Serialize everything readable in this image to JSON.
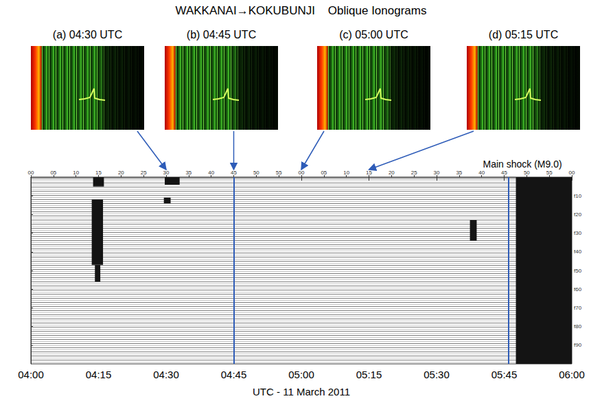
{
  "title": "WAKKANAI→KOKUBUNJI    Oblique Ionograms",
  "ionograms": [
    {
      "label": "(a) 04:30 UTC",
      "time": 30
    },
    {
      "label": "(b) 04:45 UTC",
      "time": 45
    },
    {
      "label": "(c) 05:00 UTC",
      "time": 60
    },
    {
      "label": "(d) 05:15 UTC",
      "time": 75
    }
  ],
  "chart_data": {
    "type": "spectrogram",
    "x_label": "UTC - 11 March 2011",
    "xlim": [
      0,
      120
    ],
    "xticks": [
      {
        "value": 0,
        "label": "04:00"
      },
      {
        "value": 15,
        "label": "04:15"
      },
      {
        "value": 30,
        "label": "04:30"
      },
      {
        "value": 45,
        "label": "04:45"
      },
      {
        "value": 60,
        "label": "05:00"
      },
      {
        "value": 75,
        "label": "05:15"
      },
      {
        "value": 90,
        "label": "05:30"
      },
      {
        "value": 105,
        "label": "05:45"
      },
      {
        "value": 120,
        "label": "06:00"
      }
    ],
    "x2ticks": [
      {
        "value": 0,
        "label": "00"
      },
      {
        "value": 5,
        "label": "05"
      },
      {
        "value": 10,
        "label": "10"
      },
      {
        "value": 15,
        "label": "15"
      },
      {
        "value": 20,
        "label": "20"
      },
      {
        "value": 25,
        "label": "25"
      },
      {
        "value": 30,
        "label": "30"
      },
      {
        "value": 35,
        "label": "35"
      },
      {
        "value": 40,
        "label": "40"
      },
      {
        "value": 45,
        "label": "45"
      },
      {
        "value": 50,
        "label": "50"
      },
      {
        "value": 55,
        "label": "55"
      },
      {
        "value": 60,
        "label": "00"
      },
      {
        "value": 65,
        "label": "05"
      },
      {
        "value": 70,
        "label": "10"
      },
      {
        "value": 75,
        "label": "15"
      },
      {
        "value": 80,
        "label": "20"
      },
      {
        "value": 85,
        "label": "25"
      },
      {
        "value": 90,
        "label": "30"
      },
      {
        "value": 95,
        "label": "35"
      },
      {
        "value": 100,
        "label": "40"
      },
      {
        "value": 105,
        "label": "45"
      },
      {
        "value": 110,
        "label": "50"
      },
      {
        "value": 115,
        "label": "55"
      },
      {
        "value": 120,
        "label": "00"
      }
    ],
    "ylim": [
      0,
      100
    ],
    "yticks": [
      {
        "value": 10,
        "label": "f10"
      },
      {
        "value": 20,
        "label": "f20"
      },
      {
        "value": 30,
        "label": "f30"
      },
      {
        "value": 40,
        "label": "f40"
      },
      {
        "value": 50,
        "label": "f50"
      },
      {
        "value": 60,
        "label": "f60"
      },
      {
        "value": 70,
        "label": "f70"
      },
      {
        "value": 80,
        "label": "f80"
      },
      {
        "value": 90,
        "label": "f90"
      }
    ],
    "color": "#141414",
    "dark_regions": [
      {
        "x0": 13.8,
        "x1": 16.2,
        "y0": 0,
        "y1": 5
      },
      {
        "x0": 13.5,
        "x1": 16.0,
        "y0": 12,
        "y1": 47
      },
      {
        "x0": 14.2,
        "x1": 15.4,
        "y0": 47,
        "y1": 56
      },
      {
        "x0": 29.7,
        "x1": 33.0,
        "y0": 0,
        "y1": 4
      },
      {
        "x0": 29.5,
        "x1": 31.0,
        "y0": 11,
        "y1": 14
      },
      {
        "x0": 97.4,
        "x1": 98.9,
        "y0": 23,
        "y1": 34
      },
      {
        "x0": 107.6,
        "x1": 120,
        "y0": 0,
        "y1": 100
      }
    ],
    "markers": [
      {
        "x": 45
      },
      {
        "x": 106,
        "label": "Main shock (M9.0)"
      }
    ]
  }
}
